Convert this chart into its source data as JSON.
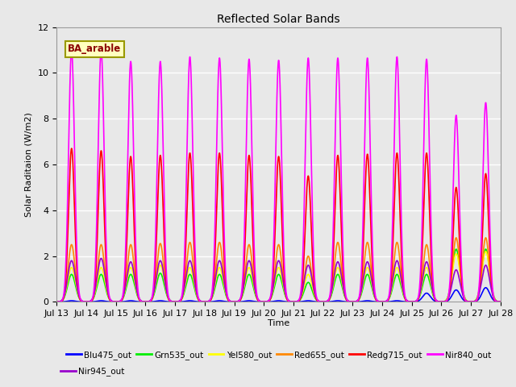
{
  "title": "Reflected Solar Bands",
  "xlabel": "Time",
  "ylabel": "Solar Raditaion (W/m2)",
  "annotation_text": "BA_arable",
  "annotation_color": "#8B0000",
  "annotation_bg": "#FFFFC0",
  "annotation_border": "#999900",
  "xlim_start": 13,
  "xlim_end": 28,
  "ylim_min": 0,
  "ylim_max": 12,
  "xtick_labels": [
    "Jul 13",
    "Jul 14",
    "Jul 15",
    "Jul 16",
    "Jul 17",
    "Jul 18",
    "Jul 19",
    "Jul 20",
    "Jul 21",
    "Jul 22",
    "Jul 23",
    "Jul 24",
    "Jul 25",
    "Jul 26",
    "Jul 27",
    "Jul 28"
  ],
  "bg_color": "#E8E8E8",
  "plot_bg_color": "#E8E8E8",
  "grid_color": "white",
  "colors": {
    "Blu475_out": "#0000FF",
    "Grn535_out": "#00EE00",
    "Yel580_out": "#FFFF00",
    "Red655_out": "#FF8800",
    "Redg715_out": "#FF0000",
    "Nir840_out": "#FF00FF",
    "Nir945_out": "#9900CC"
  },
  "day_peaks_Blu": [
    0.05,
    0.05,
    0.05,
    0.05,
    0.05,
    0.05,
    0.05,
    0.05,
    0.05,
    0.05,
    0.05,
    0.05,
    0.38,
    0.52,
    0.62,
    0.0
  ],
  "day_peaks_Grn": [
    1.2,
    1.2,
    1.2,
    1.25,
    1.2,
    1.2,
    1.2,
    1.2,
    0.85,
    1.2,
    1.2,
    1.2,
    1.2,
    2.3,
    2.3,
    0.0
  ],
  "day_peaks_Yel": [
    1.5,
    1.5,
    1.5,
    1.6,
    1.5,
    1.5,
    1.5,
    1.5,
    1.2,
    1.5,
    1.5,
    1.5,
    1.5,
    2.1,
    2.2,
    0.0
  ],
  "day_peaks_Red": [
    2.5,
    2.5,
    2.5,
    2.55,
    2.6,
    2.6,
    2.5,
    2.5,
    2.0,
    2.6,
    2.6,
    2.6,
    2.5,
    2.8,
    2.8,
    0.0
  ],
  "day_peaks_Redg": [
    6.7,
    6.6,
    6.35,
    6.4,
    6.5,
    6.5,
    6.4,
    6.35,
    5.5,
    6.4,
    6.45,
    6.5,
    6.5,
    5.0,
    5.6,
    0.0
  ],
  "day_peaks_Nir840": [
    11.0,
    11.0,
    10.5,
    10.5,
    10.7,
    10.65,
    10.6,
    10.55,
    10.65,
    10.65,
    10.65,
    10.7,
    10.6,
    8.15,
    8.7,
    0.0
  ],
  "day_peaks_Nir945": [
    1.8,
    1.9,
    1.75,
    1.8,
    1.8,
    1.8,
    1.8,
    1.8,
    1.6,
    1.75,
    1.75,
    1.8,
    1.75,
    1.4,
    1.6,
    0.0
  ]
}
